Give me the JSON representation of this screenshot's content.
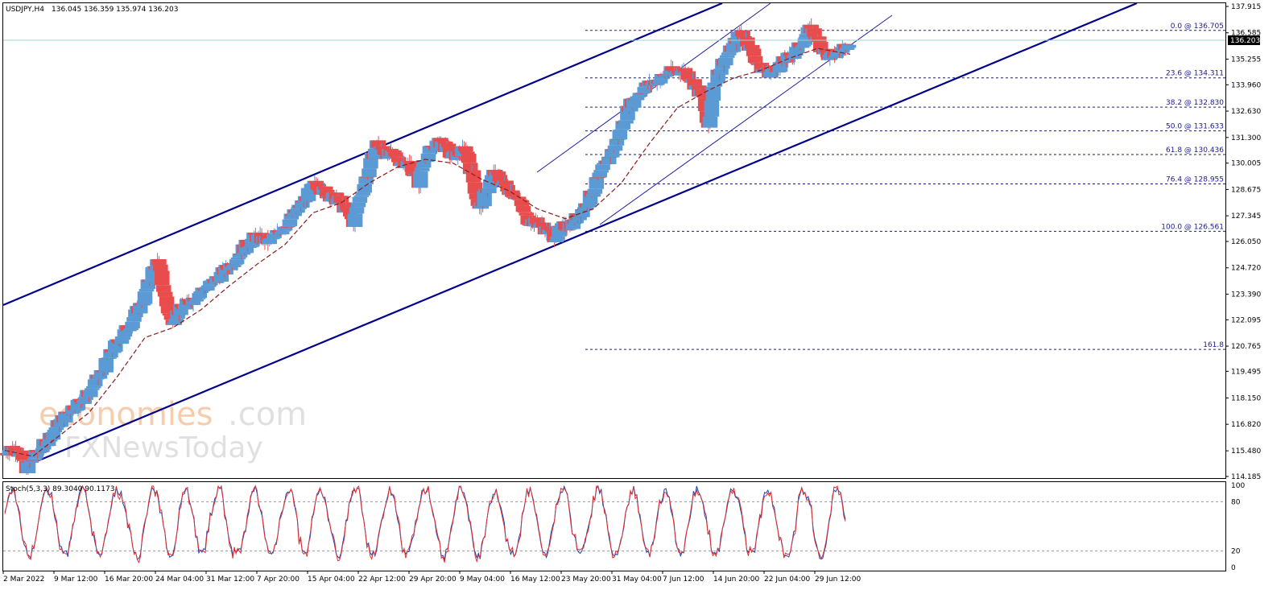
{
  "header": {
    "symbol": "USDJPY,H4",
    "ohlc": "136.045 136.359 135.974 136.203"
  },
  "current_price": "136.203",
  "watermark": {
    "line1_a": "economies",
    "line1_b": ".com",
    "line2": "FXNewsToday"
  },
  "chart_data": [
    {
      "type": "candlestick",
      "title": "USDJPY,H4",
      "ylim": [
        114.185,
        137.915
      ],
      "y_ticks": [
        "137.915",
        "136.585",
        "135.255",
        "133.960",
        "132.630",
        "131.300",
        "130.005",
        "128.675",
        "127.345",
        "126.050",
        "124.720",
        "123.390",
        "122.095",
        "120.765",
        "119.495",
        "118.150",
        "116.820",
        "115.480",
        "114.185"
      ],
      "x_ticks": [
        "2 Mar 2022",
        "9 Mar 12:00",
        "16 Mar 20:00",
        "24 Mar 04:00",
        "31 Mar 12:00",
        "7 Apr 20:00",
        "15 Apr 04:00",
        "22 Apr 12:00",
        "29 Apr 20:00",
        "9 May 04:00",
        "16 May 12:00",
        "23 May 20:00",
        "31 May 04:00",
        "7 Jun 12:00",
        "14 Jun 20:00",
        "22 Jun 04:00",
        "29 Jun 12:00"
      ],
      "price_path": [
        [
          0,
          115.3
        ],
        [
          2,
          115.7
        ],
        [
          4,
          115.2
        ],
        [
          5,
          114.6
        ],
        [
          9,
          115.9
        ],
        [
          12,
          116.9
        ],
        [
          15,
          117.7
        ],
        [
          18,
          118.3
        ],
        [
          21,
          119.4
        ],
        [
          24,
          120.8
        ],
        [
          27,
          121.8
        ],
        [
          30,
          123.1
        ],
        [
          32,
          124.6
        ],
        [
          33,
          125.0
        ],
        [
          34,
          124.0
        ],
        [
          35,
          122.8
        ],
        [
          36,
          122.0
        ],
        [
          37,
          122.4
        ],
        [
          39,
          122.8
        ],
        [
          42,
          123.5
        ],
        [
          45,
          124.0
        ],
        [
          48,
          124.7
        ],
        [
          51,
          125.6
        ],
        [
          54,
          126.3
        ],
        [
          57,
          126.0
        ],
        [
          60,
          126.8
        ],
        [
          63,
          127.6
        ],
        [
          66,
          128.7
        ],
        [
          67,
          129.0
        ],
        [
          69,
          128.5
        ],
        [
          72,
          128.1
        ],
        [
          74,
          127.4
        ],
        [
          75,
          127.0
        ],
        [
          76,
          128.0
        ],
        [
          78,
          129.5
        ],
        [
          80,
          131.0
        ],
        [
          81,
          130.7
        ],
        [
          83,
          130.4
        ],
        [
          85,
          130.1
        ],
        [
          87,
          130.0
        ],
        [
          89,
          129.0
        ],
        [
          90,
          130.2
        ],
        [
          92,
          130.8
        ],
        [
          94,
          131.1
        ],
        [
          96,
          130.3
        ],
        [
          98,
          130.5
        ],
        [
          99,
          130.8
        ],
        [
          101,
          128.7
        ],
        [
          102,
          127.6
        ],
        [
          103,
          128.3
        ],
        [
          105,
          129.5
        ],
        [
          107,
          129.0
        ],
        [
          110,
          128.3
        ],
        [
          112,
          127.2
        ],
        [
          115,
          126.9
        ],
        [
          118,
          126.3
        ],
        [
          120,
          126.8
        ],
        [
          122,
          127.0
        ],
        [
          125,
          128.0
        ],
        [
          128,
          129.5
        ],
        [
          131,
          130.9
        ],
        [
          134,
          132.9
        ],
        [
          137,
          133.8
        ],
        [
          140,
          134.2
        ],
        [
          143,
          134.6
        ],
        [
          146,
          134.7
        ],
        [
          148,
          134.0
        ],
        [
          150,
          133.2
        ],
        [
          151,
          131.5
        ],
        [
          152,
          134.0
        ],
        [
          154,
          135.1
        ],
        [
          156,
          135.8
        ],
        [
          158,
          136.7
        ],
        [
          160,
          135.8
        ],
        [
          162,
          134.8
        ],
        [
          164,
          134.6
        ],
        [
          166,
          134.9
        ],
        [
          168,
          135.3
        ],
        [
          170,
          135.7
        ],
        [
          172,
          136.5
        ],
        [
          173,
          136.8
        ],
        [
          175,
          135.9
        ],
        [
          177,
          135.3
        ],
        [
          179,
          135.6
        ],
        [
          181,
          136.2
        ]
      ],
      "ma_path": [
        [
          0,
          115.5
        ],
        [
          6,
          115.2
        ],
        [
          12,
          116.3
        ],
        [
          18,
          117.4
        ],
        [
          24,
          119.2
        ],
        [
          30,
          121.2
        ],
        [
          36,
          121.7
        ],
        [
          42,
          122.6
        ],
        [
          48,
          123.8
        ],
        [
          54,
          124.9
        ],
        [
          60,
          125.9
        ],
        [
          66,
          127.5
        ],
        [
          72,
          128.0
        ],
        [
          78,
          129.0
        ],
        [
          84,
          129.8
        ],
        [
          90,
          130.2
        ],
        [
          96,
          130.0
        ],
        [
          102,
          129.2
        ],
        [
          108,
          128.6
        ],
        [
          114,
          127.7
        ],
        [
          120,
          127.2
        ],
        [
          126,
          127.7
        ],
        [
          132,
          129.0
        ],
        [
          138,
          131.0
        ],
        [
          144,
          132.8
        ],
        [
          150,
          133.6
        ],
        [
          156,
          134.3
        ],
        [
          162,
          134.7
        ],
        [
          168,
          135.3
        ],
        [
          174,
          135.8
        ],
        [
          181,
          135.5
        ]
      ],
      "fibonacci": [
        {
          "label": "0.0 @ 136.705",
          "value": 136.705
        },
        {
          "label": "23.6 @ 134.311",
          "value": 134.311
        },
        {
          "label": "38.2 @ 132.830",
          "value": 132.83
        },
        {
          "label": "50.0 @ 131.633",
          "value": 131.633
        },
        {
          "label": "61.8 @ 130.436",
          "value": 130.436
        },
        {
          "label": "76.4 @ 128.955",
          "value": 128.955
        },
        {
          "label": "100.0 @ 126.561",
          "value": 126.561
        },
        {
          "label": "161.8",
          "value": 120.6
        }
      ]
    },
    {
      "type": "line",
      "title": "Stoch(5,3,3) 89.3040 90.1173",
      "ylim": [
        0,
        100
      ],
      "y_ticks": [
        "100",
        "80",
        "20",
        "0"
      ],
      "levels": [
        80,
        20
      ]
    }
  ]
}
